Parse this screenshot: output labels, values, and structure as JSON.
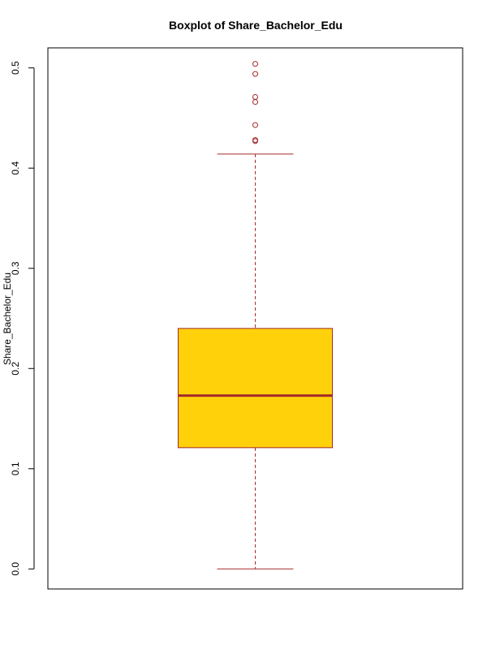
{
  "chart_data": {
    "type": "boxplot",
    "title": "Boxplot of Share_Bachelor_Edu",
    "xlabel": "",
    "ylabel": "Share_Bachelor_Edu",
    "ylim": [
      -0.02,
      0.52
    ],
    "yticks": [
      0.0,
      0.1,
      0.2,
      0.3,
      0.4,
      0.5
    ],
    "ytick_labels": [
      "0.0",
      "0.1",
      "0.2",
      "0.3",
      "0.4",
      "0.5"
    ],
    "grid": false,
    "box": {
      "whisker_low": 0.0,
      "q1": 0.121,
      "median": 0.173,
      "q3": 0.24,
      "whisker_high": 0.414
    },
    "outliers": [
      0.427,
      0.428,
      0.443,
      0.466,
      0.471,
      0.494,
      0.504
    ],
    "colors": {
      "box_fill": "#FFD10A",
      "line": "#A52A2A",
      "axis": "#000000"
    }
  }
}
